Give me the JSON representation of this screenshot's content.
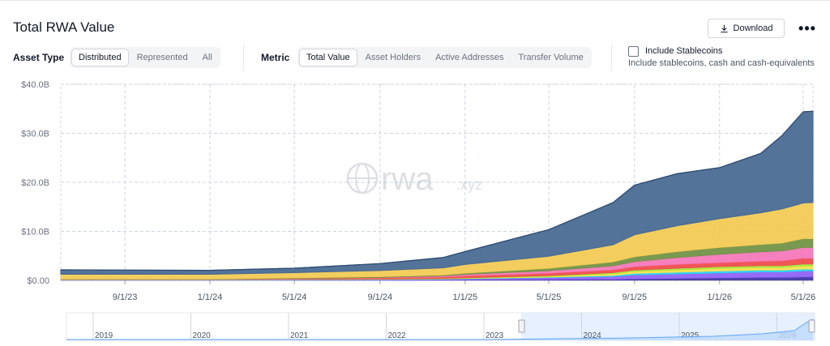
{
  "header": {
    "title": "Total RWA Value",
    "download_label": "Download",
    "more_icon": "more-dots-icon"
  },
  "controls": {
    "asset_type": {
      "label": "Asset Type",
      "options": [
        "Distributed",
        "Represented",
        "All"
      ],
      "selected": "Distributed"
    },
    "metric": {
      "label": "Metric",
      "options": [
        "Total Value",
        "Asset Holders",
        "Active Addresses",
        "Transfer Volume"
      ],
      "selected": "Total Value"
    },
    "stablecoins": {
      "label": "Include Stablecoins",
      "description": "Include stablecoins, cash and cash-equivalents",
      "checked": false
    }
  },
  "watermark": {
    "brand": "rwa",
    "suffix": ".xyz"
  },
  "chart_data": {
    "type": "area",
    "stacked": true,
    "title": "",
    "xlabel": "",
    "ylabel": "",
    "ylim": [
      0,
      40
    ],
    "y_unit": "B",
    "y_ticks": [
      "$0.00",
      "$10.0B",
      "$20.0B",
      "$30.0B",
      "$40.0B"
    ],
    "x_ticks": [
      "9/1/23",
      "1/1/24",
      "5/1/24",
      "9/1/24",
      "1/1/25",
      "5/1/25",
      "9/1/25",
      "1/1/26",
      "5/1/26"
    ],
    "grid": true,
    "x": [
      "6/1/23",
      "9/1/23",
      "1/1/24",
      "5/1/24",
      "9/1/24",
      "12/1/24",
      "1/1/25",
      "5/1/25",
      "8/1/25",
      "9/1/25",
      "11/1/25",
      "1/1/26",
      "3/1/26",
      "4/1/26",
      "5/1/26",
      "5/15/26"
    ],
    "series": [
      {
        "color": "#3730a3",
        "values": [
          0.05,
          0.05,
          0.05,
          0.05,
          0.06,
          0.08,
          0.1,
          0.15,
          0.2,
          0.3,
          0.4,
          0.5,
          0.6,
          0.6,
          0.7,
          0.7
        ]
      },
      {
        "color": "#8b5cf6",
        "values": [
          0.05,
          0.05,
          0.05,
          0.08,
          0.1,
          0.15,
          0.2,
          0.4,
          0.6,
          0.8,
          0.9,
          1.0,
          1.1,
          1.1,
          1.2,
          1.2
        ]
      },
      {
        "color": "#22d3ee",
        "values": [
          0.02,
          0.02,
          0.02,
          0.03,
          0.04,
          0.05,
          0.06,
          0.1,
          0.2,
          0.3,
          0.35,
          0.4,
          0.4,
          0.4,
          0.4,
          0.4
        ]
      },
      {
        "color": "#fde047",
        "values": [
          0.03,
          0.03,
          0.03,
          0.05,
          0.05,
          0.06,
          0.07,
          0.15,
          0.3,
          0.4,
          0.45,
          0.5,
          0.5,
          0.5,
          0.6,
          0.6
        ]
      },
      {
        "color": "#a3e635",
        "values": [
          0.02,
          0.02,
          0.02,
          0.04,
          0.05,
          0.06,
          0.08,
          0.15,
          0.25,
          0.3,
          0.35,
          0.4,
          0.4,
          0.4,
          0.4,
          0.4
        ]
      },
      {
        "color": "#ef4444",
        "values": [
          0.03,
          0.03,
          0.03,
          0.1,
          0.2,
          0.3,
          0.4,
          0.5,
          0.6,
          0.7,
          0.8,
          0.8,
          0.9,
          1.0,
          1.2,
          1.2
        ]
      },
      {
        "color": "#f472b6",
        "values": [
          0.02,
          0.02,
          0.02,
          0.05,
          0.1,
          0.2,
          0.3,
          0.5,
          0.8,
          1.0,
          1.4,
          1.7,
          1.9,
          2.0,
          2.2,
          2.2
        ]
      },
      {
        "color": "#6b8e3d",
        "values": [
          0.03,
          0.03,
          0.03,
          0.08,
          0.12,
          0.18,
          0.25,
          0.5,
          0.8,
          1.0,
          1.2,
          1.4,
          1.5,
          1.6,
          1.8,
          1.8
        ]
      },
      {
        "color": "#f2c94c",
        "values": [
          1.0,
          1.0,
          1.0,
          1.1,
          1.3,
          1.5,
          1.8,
          2.5,
          3.5,
          4.5,
          5.3,
          5.9,
          6.5,
          7.0,
          7.3,
          7.4
        ]
      },
      {
        "color": "#4a6b93",
        "values": [
          0.9,
          0.85,
          0.8,
          0.9,
          1.4,
          2.1,
          2.6,
          5.4,
          8.6,
          10.1,
          10.6,
          10.4,
          12.1,
          15.0,
          18.6,
          18.6
        ]
      }
    ]
  },
  "navigator": {
    "years": [
      "2019",
      "2020",
      "2021",
      "2022",
      "2023",
      "2024",
      "2025",
      "2026"
    ]
  }
}
